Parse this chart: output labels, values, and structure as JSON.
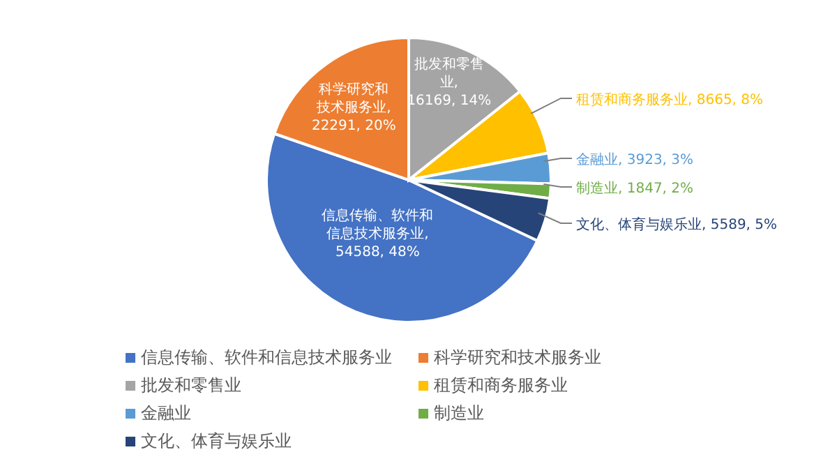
{
  "chart_data": {
    "type": "pie",
    "categories": [
      "信息传输、软件和信息技术服务业",
      "科学研究和技术服务业",
      "批发和零售业",
      "租赁和商务服务业",
      "金融业",
      "制造业",
      "文化、体育与娱乐业"
    ],
    "values": [
      54588,
      22291,
      16169,
      8665,
      3923,
      1847,
      5589
    ],
    "colors": [
      "#4472c4",
      "#ed7d31",
      "#a5a5a5",
      "#ffc000",
      "#5b9bd5",
      "#70ad47",
      "#264478"
    ],
    "value_labels": [
      "信息传输、软件和信息技术服务业, 54588, 48%",
      "科学研究和技术服务业, 22291, 20%",
      "批发和零售业, 16169, 14%",
      "租赁和商务服务业, 8665, 8%",
      "金融业, 3923, 3%",
      "制造业, 1847, 2%",
      "文化、体育与娱乐业, 5589, 5%"
    ],
    "legend": "bottom"
  }
}
